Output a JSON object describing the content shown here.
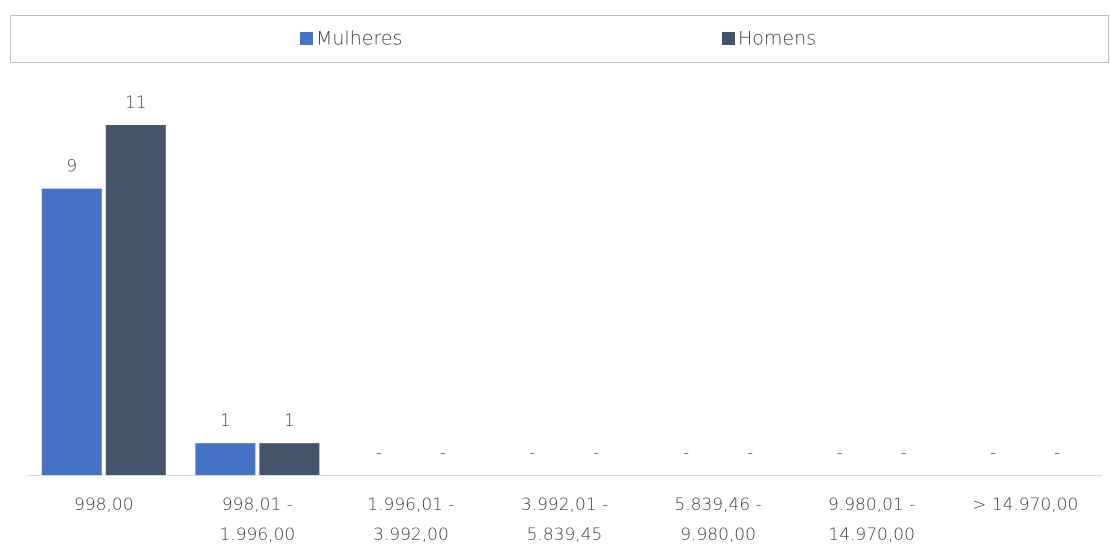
{
  "chart_data": {
    "type": "bar",
    "categories": [
      "998,00",
      "998,01 -\n1.996,00",
      "1.996,01 -\n3.992,00",
      "3.992,01 -\n5.839,45",
      "5.839,46 -\n9.980,00",
      "9.980,01 -\n14.970,00",
      "> 14.970,00"
    ],
    "series": [
      {
        "name": "Mulheres",
        "color": "#4472c4",
        "values": [
          9,
          1,
          0,
          0,
          0,
          0,
          0
        ],
        "value_labels": [
          "9",
          "1",
          "-",
          "-",
          "-",
          "-",
          "-"
        ]
      },
      {
        "name": "Homens",
        "color": "#44546a",
        "values": [
          11,
          1,
          0,
          0,
          0,
          0,
          0
        ],
        "value_labels": [
          "11",
          "1",
          "-",
          "-",
          "-",
          "-",
          "-"
        ]
      }
    ],
    "legend": "top"
  }
}
